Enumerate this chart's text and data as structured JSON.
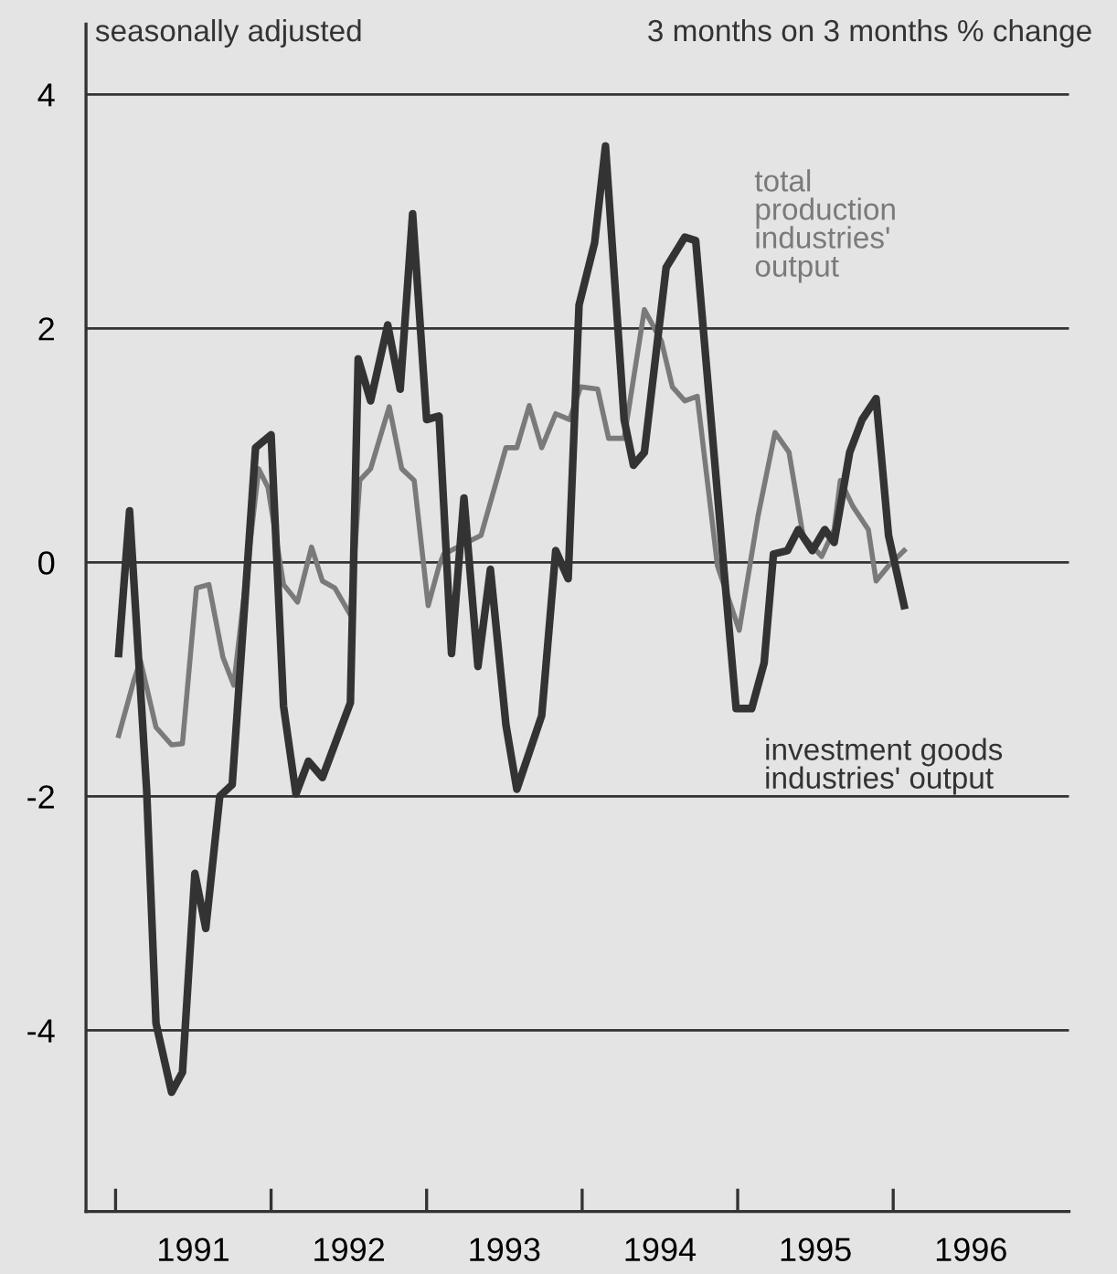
{
  "chart_data": {
    "type": "line",
    "annotations": [
      "seasonally adjusted",
      "3 months on 3 months % change"
    ],
    "xlim": [
      1990.81,
      1997.13
    ],
    "xticks": [
      {
        "value": 1991,
        "label": null
      },
      {
        "value": 1992,
        "label": null
      },
      {
        "value": 1993,
        "label": null
      },
      {
        "value": 1994,
        "label": null
      },
      {
        "value": 1995,
        "label": null
      },
      {
        "value": 1996,
        "label": null
      },
      {
        "value": 1991.5,
        "label": "1991"
      },
      {
        "value": 1992.5,
        "label": "1992"
      },
      {
        "value": 1993.5,
        "label": "1993"
      },
      {
        "value": 1994.5,
        "label": "1994"
      },
      {
        "value": 1995.5,
        "label": "1995"
      },
      {
        "value": 1996.5,
        "label": "1996"
      }
    ],
    "ylim": [
      -5.55,
      4.6
    ],
    "yticks": [
      -4,
      -2,
      0,
      2,
      4
    ],
    "grid": "y",
    "legend": false,
    "line_style": "solid",
    "marker": "none",
    "series": [
      {
        "name": "total\nproduction\nindustries'\noutput",
        "color": "#7a7a7a",
        "x": [
          1991.02,
          1991.12,
          1991.16,
          1991.26,
          1991.36,
          1991.43,
          1991.52,
          1991.6,
          1991.69,
          1991.76,
          1991.92,
          1991.98,
          1992.08,
          1992.17,
          1992.26,
          1992.33,
          1992.41,
          1992.51,
          1992.57,
          1992.64,
          1992.76,
          1992.84,
          1992.92,
          1993.01,
          1993.08,
          1993.11,
          1993.35,
          1993.51,
          1993.58,
          1993.66,
          1993.74,
          1993.83,
          1993.92,
          1993.99,
          1994.1,
          1994.17,
          1994.27,
          1994.4,
          1994.51,
          1994.58,
          1994.66,
          1994.74,
          1994.87,
          1995.01,
          1995.13,
          1995.24,
          1995.33,
          1995.42,
          1995.54,
          1995.62,
          1995.66,
          1995.74,
          1995.84,
          1995.89,
          1995.97,
          1996.07
        ],
        "values": [
          -1.48,
          -1.0,
          -0.84,
          -1.41,
          -1.56,
          -1.55,
          -0.22,
          -0.19,
          -0.81,
          -1.05,
          0.8,
          0.64,
          -0.19,
          -0.34,
          0.13,
          -0.16,
          -0.22,
          -0.45,
          0.7,
          0.8,
          1.33,
          0.8,
          0.7,
          -0.37,
          -0.03,
          0.07,
          0.23,
          0.98,
          0.98,
          1.34,
          0.98,
          1.27,
          1.22,
          1.5,
          1.48,
          1.06,
          1.06,
          2.16,
          1.89,
          1.5,
          1.38,
          1.42,
          -0.03,
          -0.58,
          0.39,
          1.11,
          0.94,
          0.23,
          0.05,
          0.28,
          0.7,
          0.48,
          0.28,
          -0.16,
          -0.03,
          0.1
        ]
      },
      {
        "name": "investment goods\nindustries' output",
        "color": "#333333",
        "x": [
          1991.02,
          1991.09,
          1991.2,
          1991.26,
          1991.36,
          1991.43,
          1991.51,
          1991.58,
          1991.67,
          1991.75,
          1991.9,
          1992.0,
          1992.08,
          1992.16,
          1992.24,
          1992.33,
          1992.51,
          1992.56,
          1992.64,
          1992.75,
          1992.83,
          1992.91,
          1993.0,
          1993.08,
          1993.16,
          1993.24,
          1993.33,
          1993.41,
          1993.51,
          1993.58,
          1993.74,
          1993.83,
          1993.91,
          1993.98,
          1994.08,
          1994.15,
          1994.27,
          1994.33,
          1994.4,
          1994.54,
          1994.66,
          1994.73,
          1994.92,
          1994.99,
          1995.09,
          1995.17,
          1995.23,
          1995.32,
          1995.39,
          1995.48,
          1995.56,
          1995.62,
          1995.72,
          1995.8,
          1995.89,
          1995.97,
          1996.07
        ],
        "values": [
          -0.78,
          0.44,
          -1.95,
          -3.94,
          -4.53,
          -4.36,
          -2.66,
          -3.13,
          -2.0,
          -1.9,
          0.98,
          1.09,
          -1.23,
          -1.98,
          -1.7,
          -1.84,
          -1.2,
          1.74,
          1.38,
          2.03,
          1.48,
          2.98,
          1.22,
          1.25,
          -0.78,
          0.55,
          -0.89,
          -0.06,
          -1.39,
          -1.94,
          -1.31,
          0.1,
          -0.14,
          2.2,
          2.73,
          3.56,
          1.22,
          0.83,
          0.94,
          2.52,
          2.78,
          2.75,
          -0.19,
          -1.25,
          -1.25,
          -0.86,
          0.07,
          0.1,
          0.28,
          0.1,
          0.28,
          0.17,
          0.94,
          1.22,
          1.4,
          0.23,
          -0.37
        ]
      }
    ]
  }
}
